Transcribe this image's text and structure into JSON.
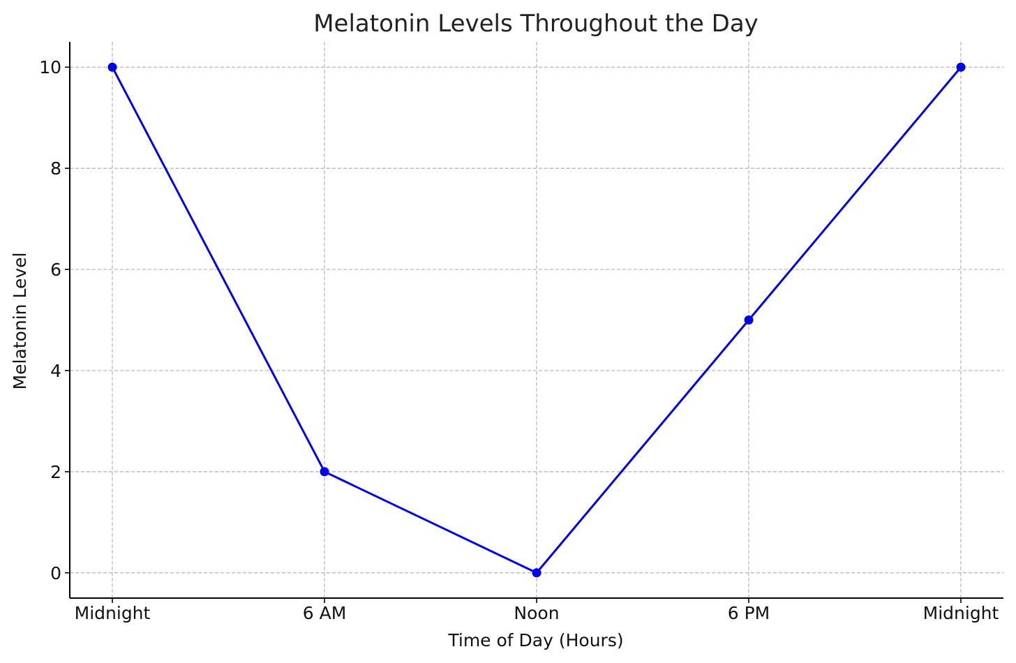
{
  "chart_data": {
    "type": "line",
    "title": "Melatonin Levels Throughout the Day",
    "xlabel": "Time of Day (Hours)",
    "ylabel": "Melatonin Level",
    "categories": [
      "Midnight",
      "6 AM",
      "Noon",
      "6 PM",
      "Midnight"
    ],
    "series": [
      {
        "values": [
          10,
          2,
          0,
          5,
          10
        ],
        "color": "#0000ee"
      }
    ],
    "ylim": [
      -0.5,
      10.5
    ],
    "yticks": [
      "0",
      "2",
      "4",
      "6",
      "8",
      "10"
    ],
    "grid": true,
    "grid_color": "#b0b0b0"
  }
}
